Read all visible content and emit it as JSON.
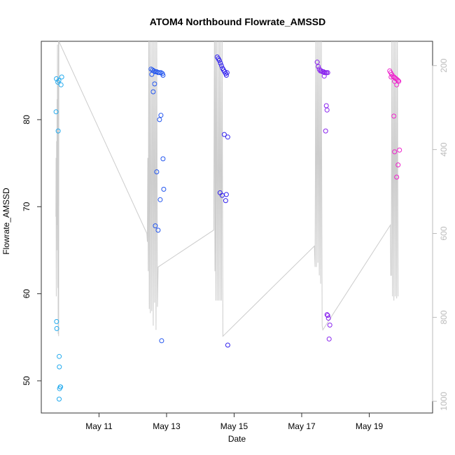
{
  "chart_data": {
    "type": "scatter",
    "title": "ATOM4 Northbound Flowrate_AMSSD",
    "xlabel": "Date",
    "ylabel": "Flowrate_AMSSD",
    "xlim": [
      "2023-05-09T07:00",
      "2023-05-20T21:00"
    ],
    "ylim": [
      46.3,
      89.0
    ],
    "y2lim": [
      1028,
      142
    ],
    "x_ticks": [
      {
        "value": "2023-05-11",
        "label": "May 11"
      },
      {
        "value": "2023-05-13",
        "label": "May 13"
      },
      {
        "value": "2023-05-15",
        "label": "May 15"
      },
      {
        "value": "2023-05-17",
        "label": "May 17"
      },
      {
        "value": "2023-05-19",
        "label": "May 19"
      }
    ],
    "y_ticks": [
      50,
      60,
      70,
      80
    ],
    "y2_ticks": [
      200,
      400,
      600,
      800,
      1000
    ],
    "grid": false,
    "legend": "none",
    "series": [
      {
        "color": "#22aaee",
        "points": [
          [
            "2023-05-09T17:45",
            84.7
          ],
          [
            "2023-05-09T18:45",
            84.3
          ],
          [
            "2023-05-09T19:30",
            84.5
          ],
          [
            "2023-05-09T21:30",
            84.9
          ],
          [
            "2023-05-09T21:00",
            84.0
          ],
          [
            "2023-05-09T17:30",
            80.9
          ],
          [
            "2023-05-09T19:00",
            78.7
          ],
          [
            "2023-05-09T17:50",
            56.8
          ],
          [
            "2023-05-09T18:00",
            56.0
          ],
          [
            "2023-05-09T19:45",
            52.8
          ],
          [
            "2023-05-09T19:50",
            51.6
          ],
          [
            "2023-05-09T20:30",
            49.3
          ],
          [
            "2023-05-09T20:45",
            49.3
          ],
          [
            "2023-05-09T20:00",
            49.1
          ],
          [
            "2023-05-09T19:40",
            47.9
          ]
        ]
      },
      {
        "color": "#2255ee",
        "points": [
          [
            "2023-05-12T13:00",
            85.8
          ],
          [
            "2023-05-12T14:00",
            85.7
          ],
          [
            "2023-05-12T15:00",
            85.6
          ],
          [
            "2023-05-12T16:00",
            85.5
          ],
          [
            "2023-05-12T17:00",
            85.5
          ],
          [
            "2023-05-12T18:00",
            85.4
          ],
          [
            "2023-05-12T19:00",
            85.4
          ],
          [
            "2023-05-12T20:00",
            85.4
          ],
          [
            "2023-05-12T21:00",
            85.3
          ],
          [
            "2023-05-12T13:30",
            85.2
          ],
          [
            "2023-05-12T21:30",
            85.1
          ],
          [
            "2023-05-12T15:30",
            84.1
          ],
          [
            "2023-05-12T14:30",
            83.2
          ],
          [
            "2023-05-12T20:00",
            80.5
          ],
          [
            "2023-05-12T19:00",
            80.0
          ],
          [
            "2023-05-12T21:30",
            75.5
          ],
          [
            "2023-05-12T17:00",
            74.0
          ],
          [
            "2023-05-12T22:00",
            72.0
          ],
          [
            "2023-05-12T19:30",
            70.8
          ],
          [
            "2023-05-12T16:00",
            67.8
          ],
          [
            "2023-05-12T18:00",
            67.3
          ],
          [
            "2023-05-12T20:30",
            54.6
          ]
        ]
      },
      {
        "color": "#3322ee",
        "points": [
          [
            "2023-05-14T12:00",
            87.2
          ],
          [
            "2023-05-14T12:45",
            87.0
          ],
          [
            "2023-05-14T13:30",
            86.8
          ],
          [
            "2023-05-14T14:15",
            86.5
          ],
          [
            "2023-05-14T15:00",
            86.2
          ],
          [
            "2023-05-14T15:45",
            85.9
          ],
          [
            "2023-05-14T16:30",
            85.7
          ],
          [
            "2023-05-14T17:15",
            85.5
          ],
          [
            "2023-05-14T18:00",
            85.3
          ],
          [
            "2023-05-14T19:00",
            85.4
          ],
          [
            "2023-05-14T18:30",
            85.1
          ],
          [
            "2023-05-14T17:00",
            78.3
          ],
          [
            "2023-05-14T19:30",
            78.0
          ],
          [
            "2023-05-14T14:00",
            71.6
          ],
          [
            "2023-05-14T15:30",
            71.3
          ],
          [
            "2023-05-14T18:30",
            71.4
          ],
          [
            "2023-05-14T18:00",
            70.7
          ],
          [
            "2023-05-14T19:30",
            54.1
          ]
        ]
      },
      {
        "color": "#8822ee",
        "points": [
          [
            "2023-05-17T11:00",
            86.6
          ],
          [
            "2023-05-17T11:45",
            86.1
          ],
          [
            "2023-05-17T12:30",
            85.8
          ],
          [
            "2023-05-17T13:15",
            85.6
          ],
          [
            "2023-05-17T14:00",
            85.6
          ],
          [
            "2023-05-17T14:45",
            85.5
          ],
          [
            "2023-05-17T15:30",
            85.5
          ],
          [
            "2023-05-17T16:15",
            85.4
          ],
          [
            "2023-05-17T17:00",
            85.4
          ],
          [
            "2023-05-17T17:45",
            85.4
          ],
          [
            "2023-05-17T18:30",
            85.4
          ],
          [
            "2023-05-17T16:00",
            85.0
          ],
          [
            "2023-05-17T17:30",
            81.6
          ],
          [
            "2023-05-17T18:00",
            81.1
          ],
          [
            "2023-05-17T17:00",
            78.7
          ],
          [
            "2023-05-17T18:00",
            57.6
          ],
          [
            "2023-05-17T18:30",
            57.5
          ],
          [
            "2023-05-17T19:00",
            57.2
          ],
          [
            "2023-05-17T20:00",
            56.4
          ],
          [
            "2023-05-17T19:30",
            54.8
          ]
        ]
      },
      {
        "color": "#ee22cc",
        "points": [
          [
            "2023-05-19T14:30",
            85.6
          ],
          [
            "2023-05-19T15:15",
            85.4
          ],
          [
            "2023-05-19T16:00",
            85.2
          ],
          [
            "2023-05-19T16:45",
            85.0
          ],
          [
            "2023-05-19T17:30",
            84.9
          ],
          [
            "2023-05-19T18:15",
            84.8
          ],
          [
            "2023-05-19T19:00",
            84.7
          ],
          [
            "2023-05-19T19:45",
            84.6
          ],
          [
            "2023-05-19T20:30",
            84.5
          ],
          [
            "2023-05-19T21:00",
            84.4
          ],
          [
            "2023-05-19T15:30",
            84.9
          ],
          [
            "2023-05-19T18:00",
            84.4
          ],
          [
            "2023-05-19T19:30",
            84.0
          ],
          [
            "2023-05-19T17:30",
            80.4
          ],
          [
            "2023-05-19T21:30",
            76.5
          ],
          [
            "2023-05-19T18:00",
            76.3
          ],
          [
            "2023-05-19T20:30",
            74.8
          ],
          [
            "2023-05-19T19:30",
            73.4
          ]
        ]
      }
    ],
    "line_series": {
      "color": "#cccccc",
      "axis": "right",
      "points": [
        [
          "2023-05-09T17:20",
          560
        ],
        [
          "2023-05-09T17:30",
          420
        ],
        [
          "2023-05-09T17:40",
          750
        ],
        [
          "2023-05-09T17:50",
          380
        ],
        [
          "2023-05-09T18:00",
          640
        ],
        [
          "2023-05-09T18:10",
          280
        ],
        [
          "2023-05-09T18:20",
          580
        ],
        [
          "2023-05-09T18:30",
          150
        ],
        [
          "2023-05-09T18:40",
          730
        ],
        [
          "2023-05-09T18:50",
          230
        ],
        [
          "2023-05-09T19:00",
          840
        ],
        [
          "2023-05-09T19:10",
          140
        ],
        [
          "2023-05-09T19:20",
          845
        ],
        [
          "2023-05-09T19:30",
          140
        ],
        [
          "2023-05-12T10:00",
          600
        ],
        [
          "2023-05-12T10:20",
          620
        ],
        [
          "2023-05-12T10:40",
          420
        ],
        [
          "2023-05-12T11:00",
          690
        ],
        [
          "2023-05-12T11:20",
          140
        ],
        [
          "2023-05-12T11:40",
          780
        ],
        [
          "2023-05-12T12:00",
          140
        ],
        [
          "2023-05-12T12:30",
          790
        ],
        [
          "2023-05-12T13:00",
          140
        ],
        [
          "2023-05-12T13:30",
          785
        ],
        [
          "2023-05-12T14:00",
          140
        ],
        [
          "2023-05-12T14:30",
          820
        ],
        [
          "2023-05-12T15:00",
          140
        ],
        [
          "2023-05-12T15:30",
          765
        ],
        [
          "2023-05-12T16:00",
          140
        ],
        [
          "2023-05-12T16:30",
          830
        ],
        [
          "2023-05-12T17:00",
          140
        ],
        [
          "2023-05-12T17:30",
          775
        ],
        [
          "2023-05-12T18:00",
          680
        ],
        [
          "2023-05-14T09:30",
          592
        ],
        [
          "2023-05-14T10:00",
          140
        ],
        [
          "2023-05-14T10:20",
          690
        ],
        [
          "2023-05-14T10:40",
          140
        ],
        [
          "2023-05-14T11:00",
          760
        ],
        [
          "2023-05-14T11:30",
          140
        ],
        [
          "2023-05-14T12:00",
          760
        ],
        [
          "2023-05-14T12:30",
          140
        ],
        [
          "2023-05-14T13:00",
          760
        ],
        [
          "2023-05-14T13:30",
          140
        ],
        [
          "2023-05-14T14:00",
          760
        ],
        [
          "2023-05-14T14:30",
          140
        ],
        [
          "2023-05-14T15:00",
          760
        ],
        [
          "2023-05-14T15:30",
          140
        ],
        [
          "2023-05-14T16:00",
          845
        ],
        [
          "2023-05-17T09:00",
          630
        ],
        [
          "2023-05-17T09:30",
          680
        ],
        [
          "2023-05-17T10:00",
          140
        ],
        [
          "2023-05-17T10:30",
          680
        ],
        [
          "2023-05-17T11:00",
          140
        ],
        [
          "2023-05-17T11:30",
          670
        ],
        [
          "2023-05-17T12:00",
          140
        ],
        [
          "2023-05-17T12:30",
          700
        ],
        [
          "2023-05-17T13:00",
          140
        ],
        [
          "2023-05-17T13:30",
          720
        ],
        [
          "2023-05-17T14:00",
          140
        ],
        [
          "2023-05-17T14:30",
          820
        ],
        [
          "2023-05-17T15:00",
          830
        ],
        [
          "2023-05-19T15:00",
          580
        ],
        [
          "2023-05-19T15:20",
          700
        ],
        [
          "2023-05-19T15:40",
          700
        ],
        [
          "2023-05-19T16:00",
          140
        ],
        [
          "2023-05-19T16:30",
          750
        ],
        [
          "2023-05-19T17:00",
          140
        ],
        [
          "2023-05-19T17:30",
          760
        ],
        [
          "2023-05-19T18:00",
          140
        ],
        [
          "2023-05-19T18:30",
          750
        ],
        [
          "2023-05-19T19:00",
          140
        ],
        [
          "2023-05-19T19:30",
          755
        ],
        [
          "2023-05-19T20:00",
          140
        ],
        [
          "2023-05-19T20:30",
          750
        ]
      ]
    }
  }
}
